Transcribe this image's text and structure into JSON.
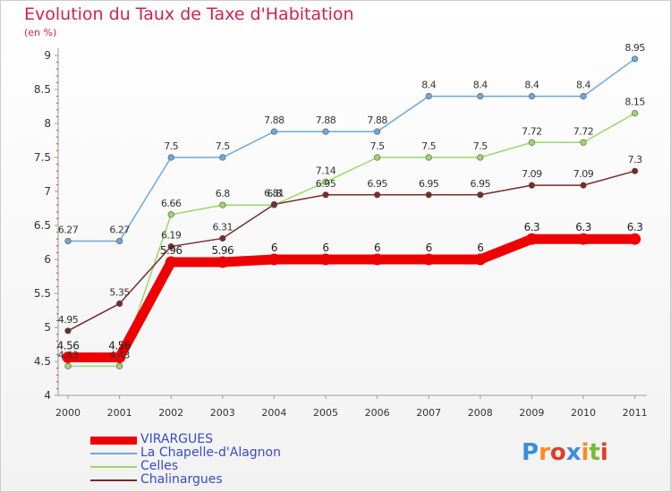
{
  "title": "Evolution du Taux de Taxe d'Habitation",
  "subtitle": "(en %)",
  "logo": {
    "text": "Proxiti",
    "colors": [
      "#3b8de0",
      "#ff8a1d",
      "#e63b2b",
      "#3b8de0",
      "#ff8a1d",
      "#7ab93c",
      "#e63b2b"
    ]
  },
  "colors": {
    "title": "#d0234f",
    "axis": "#999999",
    "legend_text": "#3a49c8"
  },
  "chart_data": {
    "type": "line",
    "title": "Evolution du Taux de Taxe d'Habitation",
    "subtitle": "(en %)",
    "xlabel": "",
    "ylabel": "",
    "categories": [
      "2000",
      "2001",
      "2002",
      "2003",
      "2004",
      "2005",
      "2006",
      "2007",
      "2008",
      "2009",
      "2010",
      "2011"
    ],
    "ylim": [
      4,
      9
    ],
    "yticks": [
      "4",
      "4.5",
      "5",
      "5.5",
      "6",
      "6.5",
      "7",
      "7.5",
      "8",
      "8.5",
      "9"
    ],
    "grid": false,
    "legend_position": "bottom-left",
    "series": [
      {
        "name": "VIRARGUES",
        "color": "#ee0000",
        "width": 11,
        "values": [
          4.56,
          4.56,
          5.96,
          5.96,
          6,
          6,
          6,
          6,
          6,
          6.3,
          6.3,
          6.3
        ],
        "labels": [
          "4.56",
          "4.56",
          "5.96",
          "5.96",
          "6",
          "6",
          "6",
          "6",
          "6",
          "6.3",
          "6.3",
          "6.3"
        ]
      },
      {
        "name": "La Chapelle-d'Alagnon",
        "color": "#6fa8dc",
        "width": 1.5,
        "values": [
          6.27,
          6.27,
          7.5,
          7.5,
          7.88,
          7.88,
          7.88,
          8.4,
          8.4,
          8.4,
          8.4,
          8.95
        ],
        "labels": [
          "6.27",
          "6.27",
          "7.5",
          "7.5",
          "7.88",
          "7.88",
          "7.88",
          "8.4",
          "8.4",
          "8.4",
          "8.4",
          "8.95"
        ]
      },
      {
        "name": "Celles",
        "color": "#9ad86a",
        "width": 1.5,
        "values": [
          4.43,
          4.43,
          6.66,
          6.8,
          6.8,
          7.14,
          7.5,
          7.5,
          7.5,
          7.72,
          7.72,
          8.15
        ],
        "labels": [
          "4.43",
          "4.43",
          "6.66",
          "6.8",
          "6.8",
          "7.14",
          "7.5",
          "7.5",
          "7.5",
          "7.72",
          "7.72",
          "8.15"
        ]
      },
      {
        "name": "Chalinargues",
        "color": "#7a2a2a",
        "width": 1.5,
        "values": [
          4.95,
          5.35,
          6.19,
          6.31,
          6.81,
          6.95,
          6.95,
          6.95,
          6.95,
          7.09,
          7.09,
          7.3
        ],
        "labels": [
          "4.95",
          "5.35",
          "6.19",
          "6.31",
          "6.81",
          "6.95",
          "6.95",
          "6.95",
          "6.95",
          "7.09",
          "7.09",
          "7.3"
        ]
      }
    ]
  }
}
